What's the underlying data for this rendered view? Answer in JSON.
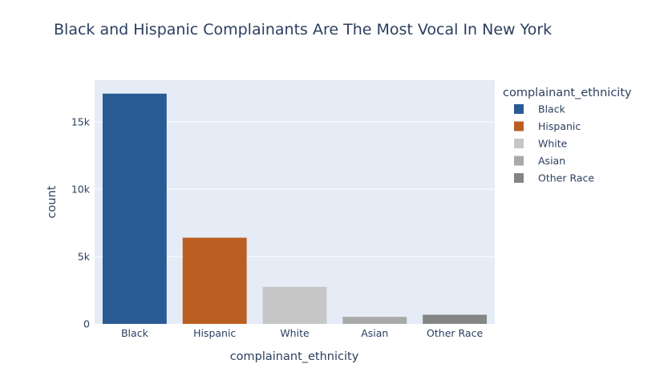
{
  "chart_data": {
    "type": "bar",
    "title": "Black and Hispanic Complainants Are The Most Vocal In New York",
    "xlabel": "complainant_ethnicity",
    "ylabel": "count",
    "categories": [
      "Black",
      "Hispanic",
      "White",
      "Asian",
      "Other Race"
    ],
    "values": [
      17100,
      6400,
      2750,
      520,
      680
    ],
    "colors": [
      "#2a5a94",
      "#bb5e22",
      "#c6c6c6",
      "#a9a9a9",
      "#858585"
    ],
    "ylim": [
      0,
      18100
    ],
    "yticks": [
      0,
      5000,
      10000,
      15000
    ],
    "ytick_labels": [
      "0",
      "5k",
      "10k",
      "15k"
    ],
    "grid": true,
    "plot_background": "#e5ecf6",
    "legend": {
      "title": "complainant_ethnicity",
      "placement": "right",
      "entries": [
        "Black",
        "Hispanic",
        "White",
        "Asian",
        "Other Race"
      ]
    }
  }
}
